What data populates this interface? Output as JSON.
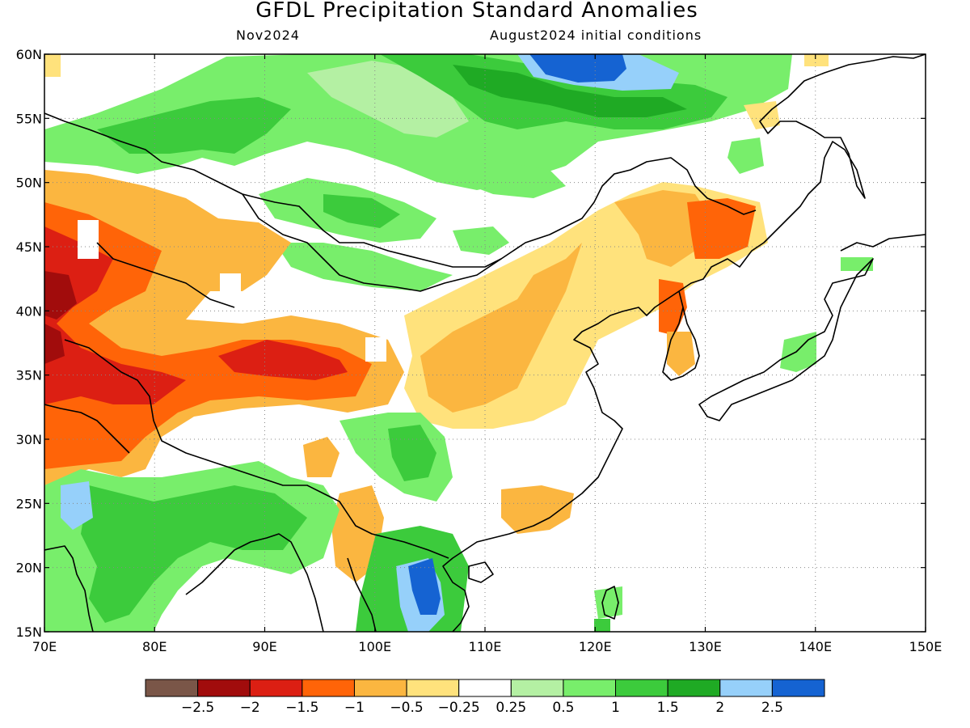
{
  "title": "GFDL Precipitation Standard Anomalies",
  "valid_month": "Nov2024",
  "init_conditions": "August2024 initial conditions",
  "map": {
    "lat_labels": [
      "60N",
      "55N",
      "50N",
      "45N",
      "40N",
      "35N",
      "30N",
      "25N",
      "20N",
      "15N"
    ],
    "lon_labels": [
      "70E",
      "80E",
      "90E",
      "100E",
      "110E",
      "120E",
      "130E",
      "140E",
      "150E"
    ],
    "lat_values": [
      60,
      55,
      50,
      45,
      40,
      35,
      30,
      25,
      20,
      15
    ],
    "lon_values": [
      70,
      80,
      90,
      100,
      110,
      120,
      130,
      140,
      150
    ],
    "lat_range": [
      15,
      60
    ],
    "lon_range": [
      70,
      150
    ],
    "gridlines": "dotted",
    "coastlines": true
  },
  "colorbar": {
    "colors": [
      "#7a5648",
      "#a10c0c",
      "#dc1f13",
      "#ff6408",
      "#fbb640",
      "#ffe27c",
      "#ffffff",
      "#b4f0a3",
      "#78ee6b",
      "#3ccb3c",
      "#1faa24",
      "#96d0fa",
      "#1563d2"
    ],
    "labels": [
      "−2.5",
      "−2",
      "−1.5",
      "−1",
      "−0.5",
      "−0.25",
      "0.25",
      "0.5",
      "1",
      "1.5",
      "2",
      "2.5"
    ]
  }
}
